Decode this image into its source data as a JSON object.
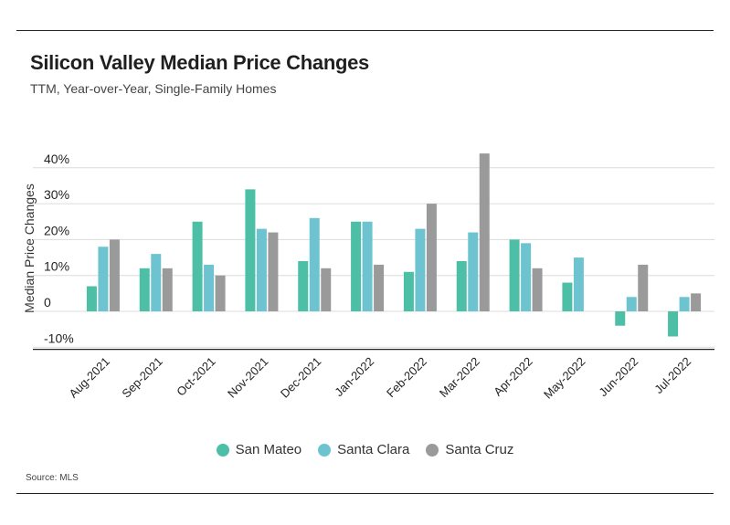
{
  "header": {
    "title": "Silicon Valley Median Price Changes",
    "subtitle": "TTM, Year-over-Year, Single-Family Homes"
  },
  "footer": {
    "source": "Source:  MLS"
  },
  "chart_data": {
    "type": "bar",
    "title": "Silicon Valley Median Price Changes",
    "subtitle": "TTM, Year-over-Year, Single-Family Homes",
    "xlabel": "",
    "ylabel": "Median Price Changes",
    "ylim": [
      -10,
      45
    ],
    "yticks": [
      -10,
      0,
      10,
      20,
      30,
      40
    ],
    "ytick_labels": [
      "-10%",
      "0",
      "10%",
      "20%",
      "30%",
      "40%"
    ],
    "grid": true,
    "legend_position": "bottom",
    "categories": [
      "Aug-2021",
      "Sep-2021",
      "Oct-2021",
      "Nov-2021",
      "Dec-2021",
      "Jan-2022",
      "Feb-2022",
      "Mar-2022",
      "Apr-2022",
      "May-2022",
      "Jun-2022",
      "Jul-2022"
    ],
    "series": [
      {
        "name": "San Mateo",
        "color": "#4dbfa6",
        "values": [
          7,
          12,
          25,
          34,
          14,
          25,
          11,
          14,
          20,
          8,
          -4,
          -7
        ]
      },
      {
        "name": "Santa Clara",
        "color": "#6dc3cf",
        "values": [
          18,
          16,
          13,
          23,
          26,
          25,
          23,
          22,
          19,
          15,
          4,
          4
        ]
      },
      {
        "name": "Santa Cruz",
        "color": "#9a9a9a",
        "values": [
          20,
          12,
          10,
          22,
          12,
          13,
          30,
          44,
          12,
          null,
          13,
          5
        ]
      }
    ]
  }
}
